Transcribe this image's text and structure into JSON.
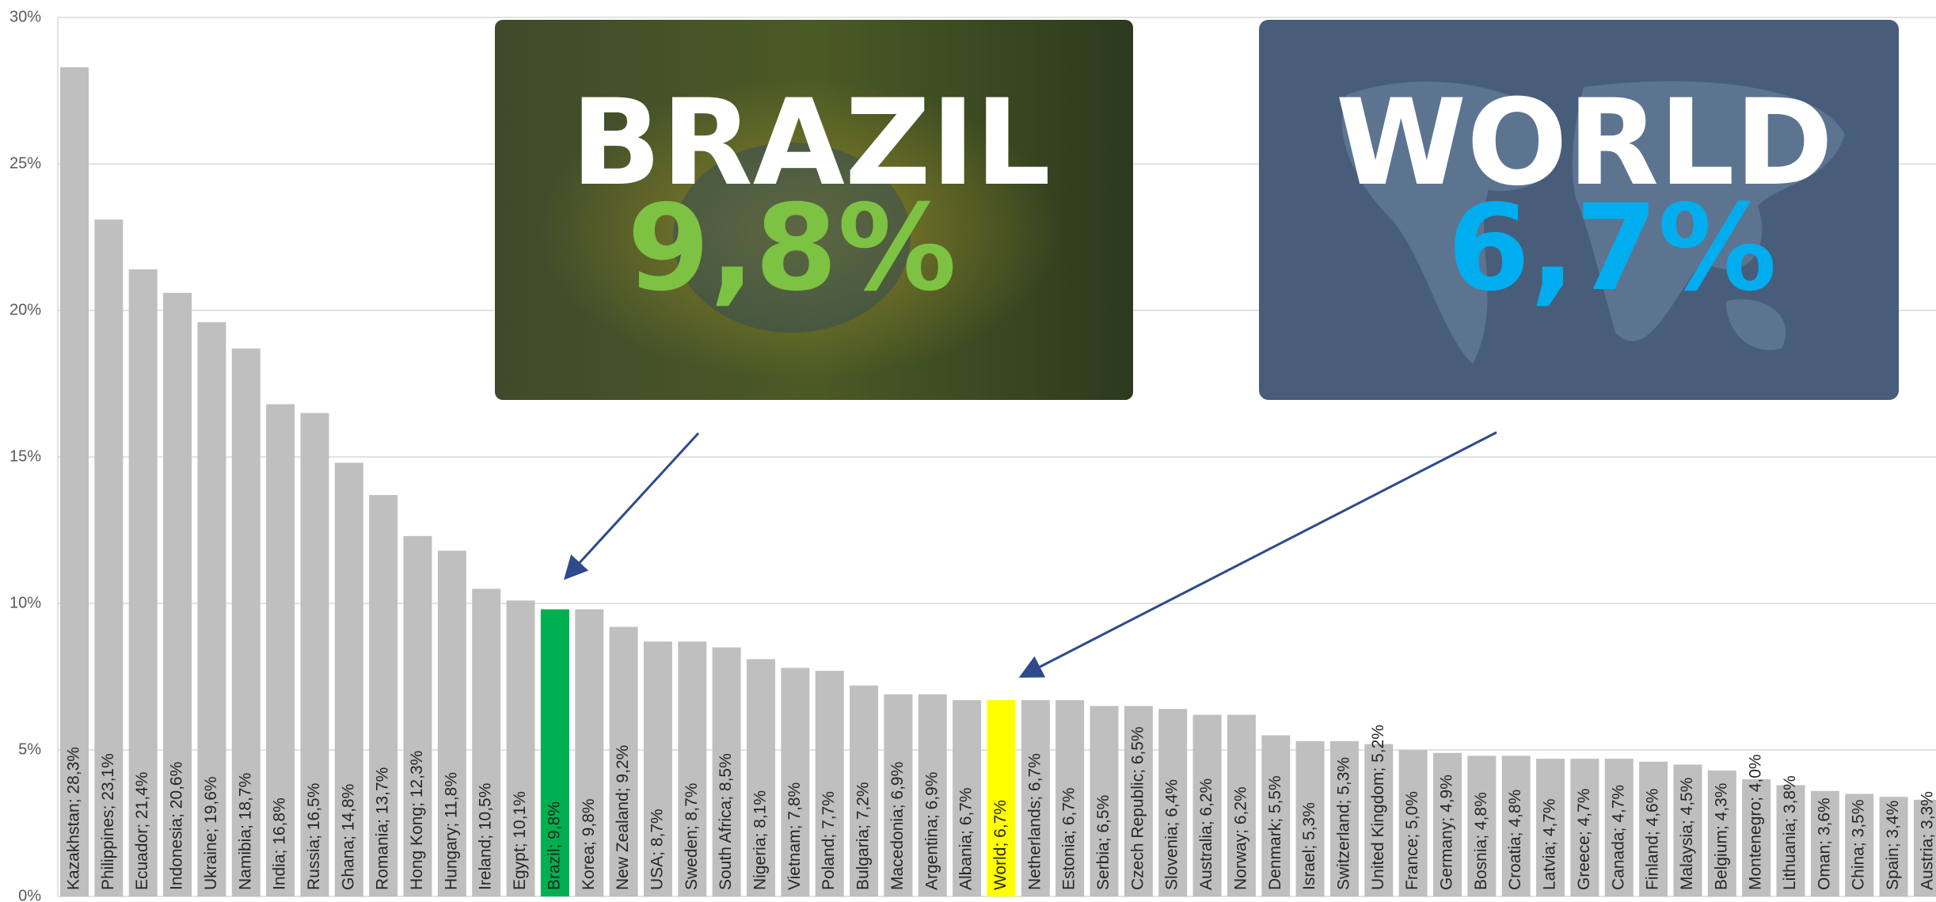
{
  "chart_data": {
    "type": "bar",
    "value_labels": [
      "Kazakhstan; 28,3%",
      "Philippines; 23,1%",
      "Ecuador; 21,4%",
      "Indonesia; 20,6%",
      "Ukraine; 19,6%",
      "Namibia; 18,7%",
      "India; 16,8%",
      "Russia; 16,5%",
      "Ghana; 14,8%",
      "Romania; 13,7%",
      "Hong Kong; 12,3%",
      "Hungary; 11,8%",
      "Ireland; 10,5%",
      "Egypt; 10,1%",
      "Brazil; 9,8%",
      "Korea; 9,8%",
      "New Zealand; 9,2%",
      "USA; 8,7%",
      "Sweden; 8,7%",
      "South Africa; 8,5%",
      "Nigeria; 8,1%",
      "Vietnam; 7,8%",
      "Poland; 7,7%",
      "Bulgaria; 7,2%",
      "Macedonia; 6,9%",
      "Argentina; 6,9%",
      "Albania; 6,7%",
      "World; 6,7%",
      "Netherlands; 6,7%",
      "Estonia; 6,7%",
      "Serbia; 6,5%",
      "Czech Republic; 6,5%",
      "Slovenia; 6,4%",
      "Australia; 6,2%",
      "Norway; 6,2%",
      "Denmark; 5,5%",
      "Israel; 5,3%",
      "Switzerland; 5,3%",
      "United Kingdom; 5,2%",
      "France; 5,0%",
      "Germany; 4,9%",
      "Bosnia; 4,8%",
      "Croatia; 4,8%",
      "Latvia; 4,7%",
      "Greece; 4,7%",
      "Canada; 4,7%",
      "Finland; 4,6%",
      "Malaysia; 4,5%",
      "Belgium; 4,3%",
      "Montenegro; 4,0%",
      "Lithuania; 3,8%",
      "Oman; 3,6%",
      "China; 3,5%",
      "Spain; 3,4%",
      "Austria; 3,3%"
    ],
    "values": [
      28.3,
      23.1,
      21.4,
      20.6,
      19.6,
      18.7,
      16.8,
      16.5,
      14.8,
      13.7,
      12.3,
      11.8,
      10.5,
      10.1,
      9.8,
      9.8,
      9.2,
      8.7,
      8.7,
      8.5,
      8.1,
      7.8,
      7.7,
      7.2,
      6.9,
      6.9,
      6.7,
      6.7,
      6.7,
      6.7,
      6.5,
      6.5,
      6.4,
      6.2,
      6.2,
      5.5,
      5.3,
      5.3,
      5.2,
      5.0,
      4.9,
      4.8,
      4.8,
      4.7,
      4.7,
      4.7,
      4.6,
      4.5,
      4.3,
      4.0,
      3.8,
      3.6,
      3.5,
      3.4,
      3.3
    ],
    "colors": [
      "#bfbfbf",
      "#bfbfbf",
      "#bfbfbf",
      "#bfbfbf",
      "#bfbfbf",
      "#bfbfbf",
      "#bfbfbf",
      "#bfbfbf",
      "#bfbfbf",
      "#bfbfbf",
      "#bfbfbf",
      "#bfbfbf",
      "#bfbfbf",
      "#bfbfbf",
      "#00b050",
      "#bfbfbf",
      "#bfbfbf",
      "#bfbfbf",
      "#bfbfbf",
      "#bfbfbf",
      "#bfbfbf",
      "#bfbfbf",
      "#bfbfbf",
      "#bfbfbf",
      "#bfbfbf",
      "#bfbfbf",
      "#bfbfbf",
      "#ffff00",
      "#bfbfbf",
      "#bfbfbf",
      "#bfbfbf",
      "#bfbfbf",
      "#bfbfbf",
      "#bfbfbf",
      "#bfbfbf",
      "#bfbfbf",
      "#bfbfbf",
      "#bfbfbf",
      "#bfbfbf",
      "#bfbfbf",
      "#bfbfbf",
      "#bfbfbf",
      "#bfbfbf",
      "#bfbfbf",
      "#bfbfbf",
      "#bfbfbf",
      "#bfbfbf",
      "#bfbfbf",
      "#bfbfbf",
      "#bfbfbf",
      "#bfbfbf",
      "#bfbfbf",
      "#bfbfbf",
      "#bfbfbf",
      "#bfbfbf"
    ],
    "ylim": [
      0,
      30
    ],
    "yticks": [
      {
        "value": 0,
        "label": "0%"
      },
      {
        "value": 5,
        "label": "5%"
      },
      {
        "value": 10,
        "label": "10%"
      },
      {
        "value": 15,
        "label": "15%"
      },
      {
        "value": 20,
        "label": "20%"
      },
      {
        "value": 25,
        "label": "25%"
      },
      {
        "value": 30,
        "label": "30%"
      }
    ],
    "grid": true,
    "annotations": [
      {
        "title": "BRAZIL",
        "text": "9,8%"
      },
      {
        "title": "WORLD",
        "text": "6,7%"
      }
    ]
  }
}
